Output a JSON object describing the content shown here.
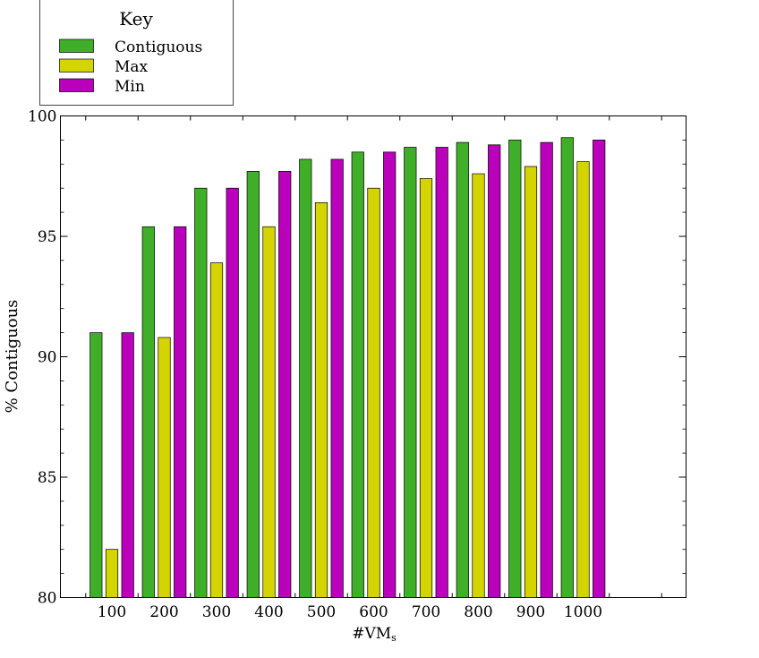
{
  "chart_data": {
    "type": "bar",
    "xlabel_main": "#VM",
    "xlabel_sub": "s",
    "ylabel": "% Contiguous",
    "ylim": [
      80,
      100
    ],
    "yticks": [
      80,
      85,
      90,
      95,
      100
    ],
    "categories": [
      "100",
      "200",
      "300",
      "400",
      "500",
      "600",
      "700",
      "800",
      "900",
      "1000"
    ],
    "legend": {
      "title": "Key",
      "placement": "top-left, outside plot"
    },
    "grid": false,
    "series": [
      {
        "name": "Contiguous",
        "color": "#3fae29",
        "values": [
          91.0,
          95.4,
          97.0,
          97.7,
          98.2,
          98.5,
          98.7,
          98.9,
          99.0,
          99.1
        ]
      },
      {
        "name": "Max",
        "color": "#d4d400",
        "values": [
          82.0,
          90.8,
          93.9,
          95.4,
          96.4,
          97.0,
          97.4,
          97.6,
          97.9,
          98.1
        ]
      },
      {
        "name": "Min",
        "color": "#bb00bb",
        "values": [
          91.0,
          95.4,
          97.0,
          97.7,
          98.2,
          98.5,
          98.7,
          98.8,
          98.9,
          99.0
        ]
      }
    ]
  }
}
